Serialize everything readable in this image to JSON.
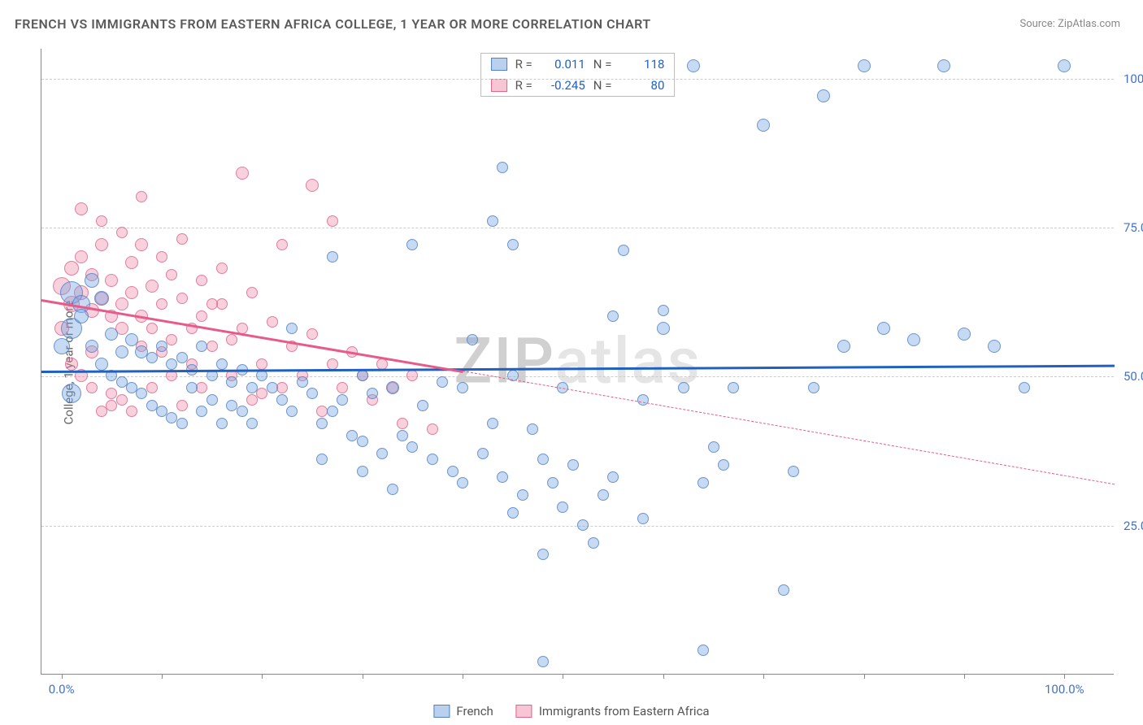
{
  "title": "FRENCH VS IMMIGRANTS FROM EASTERN AFRICA COLLEGE, 1 YEAR OR MORE CORRELATION CHART",
  "source_label": "Source: ",
  "source_name": "ZipAtlas.com",
  "ylabel": "College, 1 year or more",
  "watermark": "ZIPatlas",
  "chart": {
    "type": "scatter",
    "xlim": [
      -2,
      105
    ],
    "ylim": [
      0,
      105
    ],
    "background_color": "#ffffff",
    "grid_color": "#cccccc",
    "yticks": [
      {
        "v": 25,
        "label": "25.0%"
      },
      {
        "v": 50,
        "label": "50.0%"
      },
      {
        "v": 75,
        "label": "75.0%"
      },
      {
        "v": 100,
        "label": "100.0%"
      }
    ],
    "xticks_minor": [
      0,
      10,
      20,
      30,
      40,
      50,
      60,
      70,
      80,
      90,
      100
    ],
    "xticks_labeled": [
      {
        "v": 0,
        "label": "0.0%"
      },
      {
        "v": 100,
        "label": "100.0%"
      }
    ],
    "series": [
      {
        "name": "French",
        "color": "#74a3e0",
        "border": "#4678be",
        "line_color": "#2060c0",
        "r_value": "0.011",
        "n_value": "118",
        "trend": {
          "x1": -2,
          "y1": 51,
          "x2": 105,
          "y2": 52
        },
        "marker_radius_range": [
          6,
          14
        ],
        "points": [
          [
            1,
            64,
            14
          ],
          [
            1,
            58,
            13
          ],
          [
            2,
            62,
            11
          ],
          [
            1,
            47,
            12
          ],
          [
            0,
            55,
            10
          ],
          [
            3,
            66,
            9
          ],
          [
            2,
            60,
            9
          ],
          [
            4,
            63,
            9
          ],
          [
            3,
            55,
            8
          ],
          [
            5,
            57,
            8
          ],
          [
            4,
            52,
            8
          ],
          [
            6,
            54,
            8
          ],
          [
            5,
            50,
            7
          ],
          [
            7,
            56,
            8
          ],
          [
            6,
            49,
            7
          ],
          [
            8,
            54,
            8
          ],
          [
            7,
            48,
            7
          ],
          [
            9,
            53,
            7
          ],
          [
            8,
            47,
            7
          ],
          [
            10,
            55,
            7
          ],
          [
            9,
            45,
            7
          ],
          [
            11,
            52,
            7
          ],
          [
            10,
            44,
            7
          ],
          [
            12,
            53,
            7
          ],
          [
            11,
            43,
            7
          ],
          [
            13,
            51,
            7
          ],
          [
            12,
            42,
            7
          ],
          [
            14,
            55,
            7
          ],
          [
            13,
            48,
            7
          ],
          [
            15,
            50,
            7
          ],
          [
            14,
            44,
            7
          ],
          [
            16,
            52,
            7
          ],
          [
            15,
            46,
            7
          ],
          [
            17,
            49,
            7
          ],
          [
            16,
            42,
            7
          ],
          [
            18,
            51,
            7
          ],
          [
            17,
            45,
            7
          ],
          [
            19,
            48,
            7
          ],
          [
            18,
            44,
            7
          ],
          [
            20,
            50,
            7
          ],
          [
            19,
            42,
            7
          ],
          [
            21,
            48,
            7
          ],
          [
            22,
            46,
            7
          ],
          [
            23,
            44,
            7
          ],
          [
            24,
            49,
            7
          ],
          [
            25,
            47,
            7
          ],
          [
            26,
            42,
            7
          ],
          [
            27,
            44,
            7
          ],
          [
            28,
            46,
            7
          ],
          [
            29,
            40,
            7
          ],
          [
            30,
            39,
            7
          ],
          [
            30,
            50,
            7
          ],
          [
            31,
            47,
            7
          ],
          [
            32,
            37,
            7
          ],
          [
            33,
            48,
            8
          ],
          [
            34,
            40,
            7
          ],
          [
            35,
            38,
            7
          ],
          [
            36,
            45,
            7
          ],
          [
            37,
            36,
            7
          ],
          [
            38,
            49,
            7
          ],
          [
            39,
            34,
            7
          ],
          [
            40,
            48,
            7
          ],
          [
            40,
            32,
            7
          ],
          [
            41,
            56,
            7
          ],
          [
            42,
            37,
            7
          ],
          [
            43,
            42,
            7
          ],
          [
            43,
            76,
            7
          ],
          [
            44,
            33,
            7
          ],
          [
            45,
            50,
            7
          ],
          [
            45,
            27,
            7
          ],
          [
            46,
            30,
            7
          ],
          [
            47,
            41,
            7
          ],
          [
            48,
            36,
            7
          ],
          [
            48,
            2,
            7
          ],
          [
            49,
            32,
            7
          ],
          [
            44,
            85,
            7
          ],
          [
            50,
            28,
            7
          ],
          [
            50,
            48,
            7
          ],
          [
            51,
            35,
            7
          ],
          [
            52,
            25,
            7
          ],
          [
            53,
            22,
            7
          ],
          [
            54,
            30,
            7
          ],
          [
            55,
            33,
            7
          ],
          [
            56,
            71,
            7
          ],
          [
            58,
            46,
            7
          ],
          [
            60,
            58,
            8
          ],
          [
            60,
            61,
            7
          ],
          [
            62,
            48,
            7
          ],
          [
            63,
            102,
            8
          ],
          [
            64,
            32,
            7
          ],
          [
            64,
            4,
            7
          ],
          [
            65,
            38,
            7
          ],
          [
            66,
            35,
            7
          ],
          [
            67,
            48,
            7
          ],
          [
            70,
            92,
            8
          ],
          [
            72,
            14,
            7
          ],
          [
            73,
            34,
            7
          ],
          [
            75,
            48,
            7
          ],
          [
            76,
            97,
            8
          ],
          [
            78,
            55,
            8
          ],
          [
            80,
            102,
            8
          ],
          [
            82,
            58,
            8
          ],
          [
            85,
            56,
            8
          ],
          [
            88,
            102,
            8
          ],
          [
            90,
            57,
            8
          ],
          [
            93,
            55,
            8
          ],
          [
            96,
            48,
            7
          ],
          [
            100,
            102,
            8
          ],
          [
            27,
            70,
            7
          ],
          [
            35,
            72,
            7
          ],
          [
            23,
            58,
            7
          ],
          [
            26,
            36,
            7
          ],
          [
            30,
            34,
            7
          ],
          [
            33,
            31,
            7
          ],
          [
            45,
            72,
            7
          ],
          [
            48,
            20,
            7
          ],
          [
            55,
            60,
            7
          ],
          [
            58,
            26,
            7
          ]
        ]
      },
      {
        "name": "Immigrants from Eastern Africa",
        "color": "#f08caa",
        "border": "#dc5a82",
        "line_color": "#e85a8a",
        "r_value": "-0.245",
        "n_value": "80",
        "trend_solid": {
          "x1": -2,
          "y1": 63,
          "x2": 40,
          "y2": 51
        },
        "trend_dash": {
          "x1": 40,
          "y1": 51,
          "x2": 105,
          "y2": 32
        },
        "marker_radius_range": [
          6,
          12
        ],
        "points": [
          [
            0,
            65,
            11
          ],
          [
            1,
            62,
            10
          ],
          [
            1,
            68,
            9
          ],
          [
            2,
            64,
            9
          ],
          [
            2,
            70,
            8
          ],
          [
            3,
            61,
            9
          ],
          [
            3,
            67,
            8
          ],
          [
            4,
            63,
            8
          ],
          [
            4,
            72,
            8
          ],
          [
            5,
            60,
            8
          ],
          [
            5,
            66,
            8
          ],
          [
            6,
            62,
            8
          ],
          [
            6,
            58,
            8
          ],
          [
            7,
            64,
            8
          ],
          [
            7,
            69,
            8
          ],
          [
            8,
            60,
            8
          ],
          [
            8,
            55,
            7
          ],
          [
            2,
            78,
            8
          ],
          [
            4,
            76,
            7
          ],
          [
            6,
            74,
            7
          ],
          [
            3,
            48,
            7
          ],
          [
            5,
            45,
            7
          ],
          [
            7,
            44,
            7
          ],
          [
            9,
            65,
            8
          ],
          [
            9,
            58,
            7
          ],
          [
            10,
            62,
            7
          ],
          [
            10,
            54,
            7
          ],
          [
            11,
            67,
            7
          ],
          [
            11,
            50,
            7
          ],
          [
            12,
            63,
            7
          ],
          [
            12,
            45,
            7
          ],
          [
            13,
            58,
            7
          ],
          [
            14,
            60,
            7
          ],
          [
            14,
            48,
            7
          ],
          [
            15,
            55,
            7
          ],
          [
            16,
            62,
            7
          ],
          [
            17,
            50,
            7
          ],
          [
            18,
            58,
            7
          ],
          [
            19,
            46,
            7
          ],
          [
            20,
            52,
            7
          ],
          [
            21,
            59,
            7
          ],
          [
            22,
            48,
            7
          ],
          [
            23,
            55,
            7
          ],
          [
            24,
            50,
            7
          ],
          [
            25,
            57,
            7
          ],
          [
            26,
            44,
            7
          ],
          [
            27,
            52,
            7
          ],
          [
            28,
            48,
            7
          ],
          [
            29,
            54,
            7
          ],
          [
            25,
            82,
            8
          ],
          [
            27,
            76,
            7
          ],
          [
            22,
            72,
            7
          ],
          [
            18,
            84,
            8
          ],
          [
            30,
            50,
            7
          ],
          [
            31,
            46,
            7
          ],
          [
            32,
            52,
            7
          ],
          [
            33,
            48,
            7
          ],
          [
            34,
            42,
            7
          ],
          [
            35,
            50,
            7
          ],
          [
            37,
            41,
            7
          ],
          [
            1,
            52,
            8
          ],
          [
            3,
            54,
            8
          ],
          [
            5,
            47,
            7
          ],
          [
            0,
            58,
            9
          ],
          [
            8,
            72,
            8
          ],
          [
            10,
            70,
            7
          ],
          [
            12,
            73,
            7
          ],
          [
            14,
            66,
            7
          ],
          [
            16,
            68,
            7
          ],
          [
            6,
            46,
            7
          ],
          [
            4,
            44,
            7
          ],
          [
            2,
            50,
            8
          ],
          [
            9,
            48,
            7
          ],
          [
            11,
            56,
            7
          ],
          [
            13,
            52,
            7
          ],
          [
            15,
            62,
            7
          ],
          [
            17,
            56,
            7
          ],
          [
            19,
            64,
            7
          ],
          [
            20,
            47,
            7
          ],
          [
            8,
            80,
            7
          ]
        ]
      }
    ]
  },
  "legend": {
    "series1": "French",
    "series2": "Immigrants from Eastern Africa"
  },
  "stats_labels": {
    "r": "R =",
    "n": "N ="
  }
}
